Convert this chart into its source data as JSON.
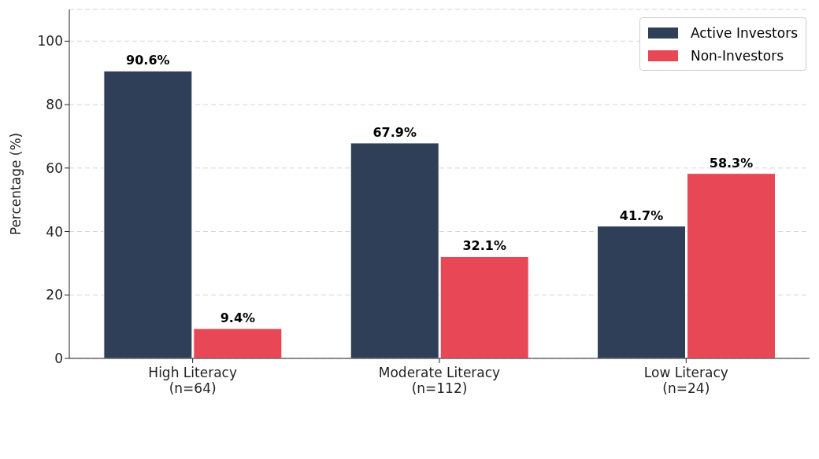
{
  "chart_data": {
    "type": "bar",
    "ylabel": "Percentage (%)",
    "categories": [
      "High Literacy\n(n=64)",
      "Moderate Literacy\n(n=112)",
      "Low Literacy\n(n=24)"
    ],
    "series": [
      {
        "name": "Active Investors",
        "color": "#2e3f57",
        "values": [
          90.6,
          67.9,
          41.7
        ],
        "value_labels": [
          "90.6%",
          "67.9%",
          "41.7%"
        ]
      },
      {
        "name": "Non-Investors",
        "color": "#e84855",
        "values": [
          9.4,
          32.1,
          58.3
        ],
        "value_labels": [
          "9.4%",
          "32.1%",
          "58.3%"
        ]
      }
    ],
    "ylim": [
      0,
      110
    ],
    "yticks": [
      0,
      20,
      40,
      60,
      80,
      100
    ],
    "grid": "y",
    "legend": "top right"
  }
}
